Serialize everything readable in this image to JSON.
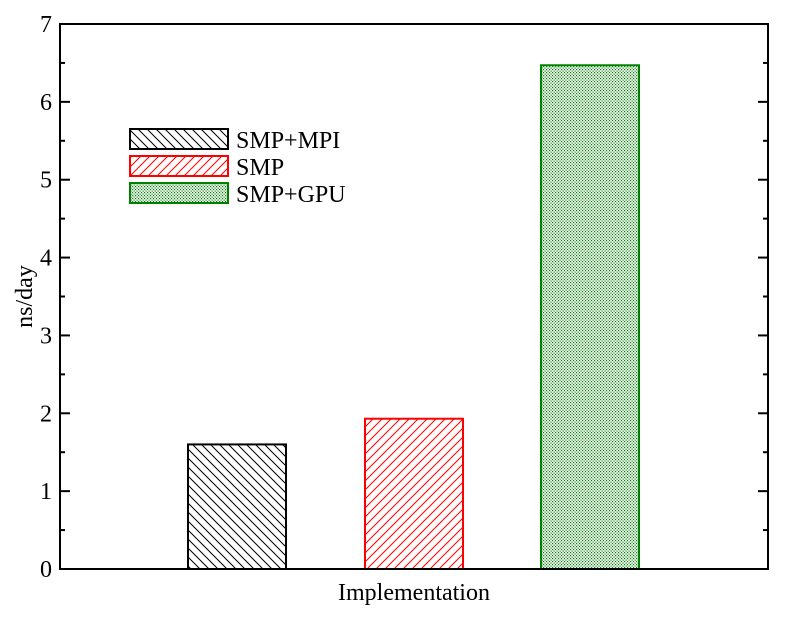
{
  "chart_data": {
    "type": "bar",
    "xlabel": "Implementation",
    "ylabel": "ns/day",
    "ylim": [
      0,
      7
    ],
    "yticks": [
      0,
      1,
      2,
      3,
      4,
      5,
      6,
      7
    ],
    "y_minor_step": 0.5,
    "grid": false,
    "legend_position": "top-left",
    "series": [
      {
        "name": "SMP+MPI",
        "value": 1.6,
        "color": "#000000",
        "pattern": "backslash-hatch"
      },
      {
        "name": "SMP",
        "value": 1.93,
        "color": "#ff0000",
        "pattern": "slash-hatch"
      },
      {
        "name": "SMP+GPU",
        "value": 6.47,
        "color": "#008000",
        "pattern": "dots"
      }
    ]
  }
}
